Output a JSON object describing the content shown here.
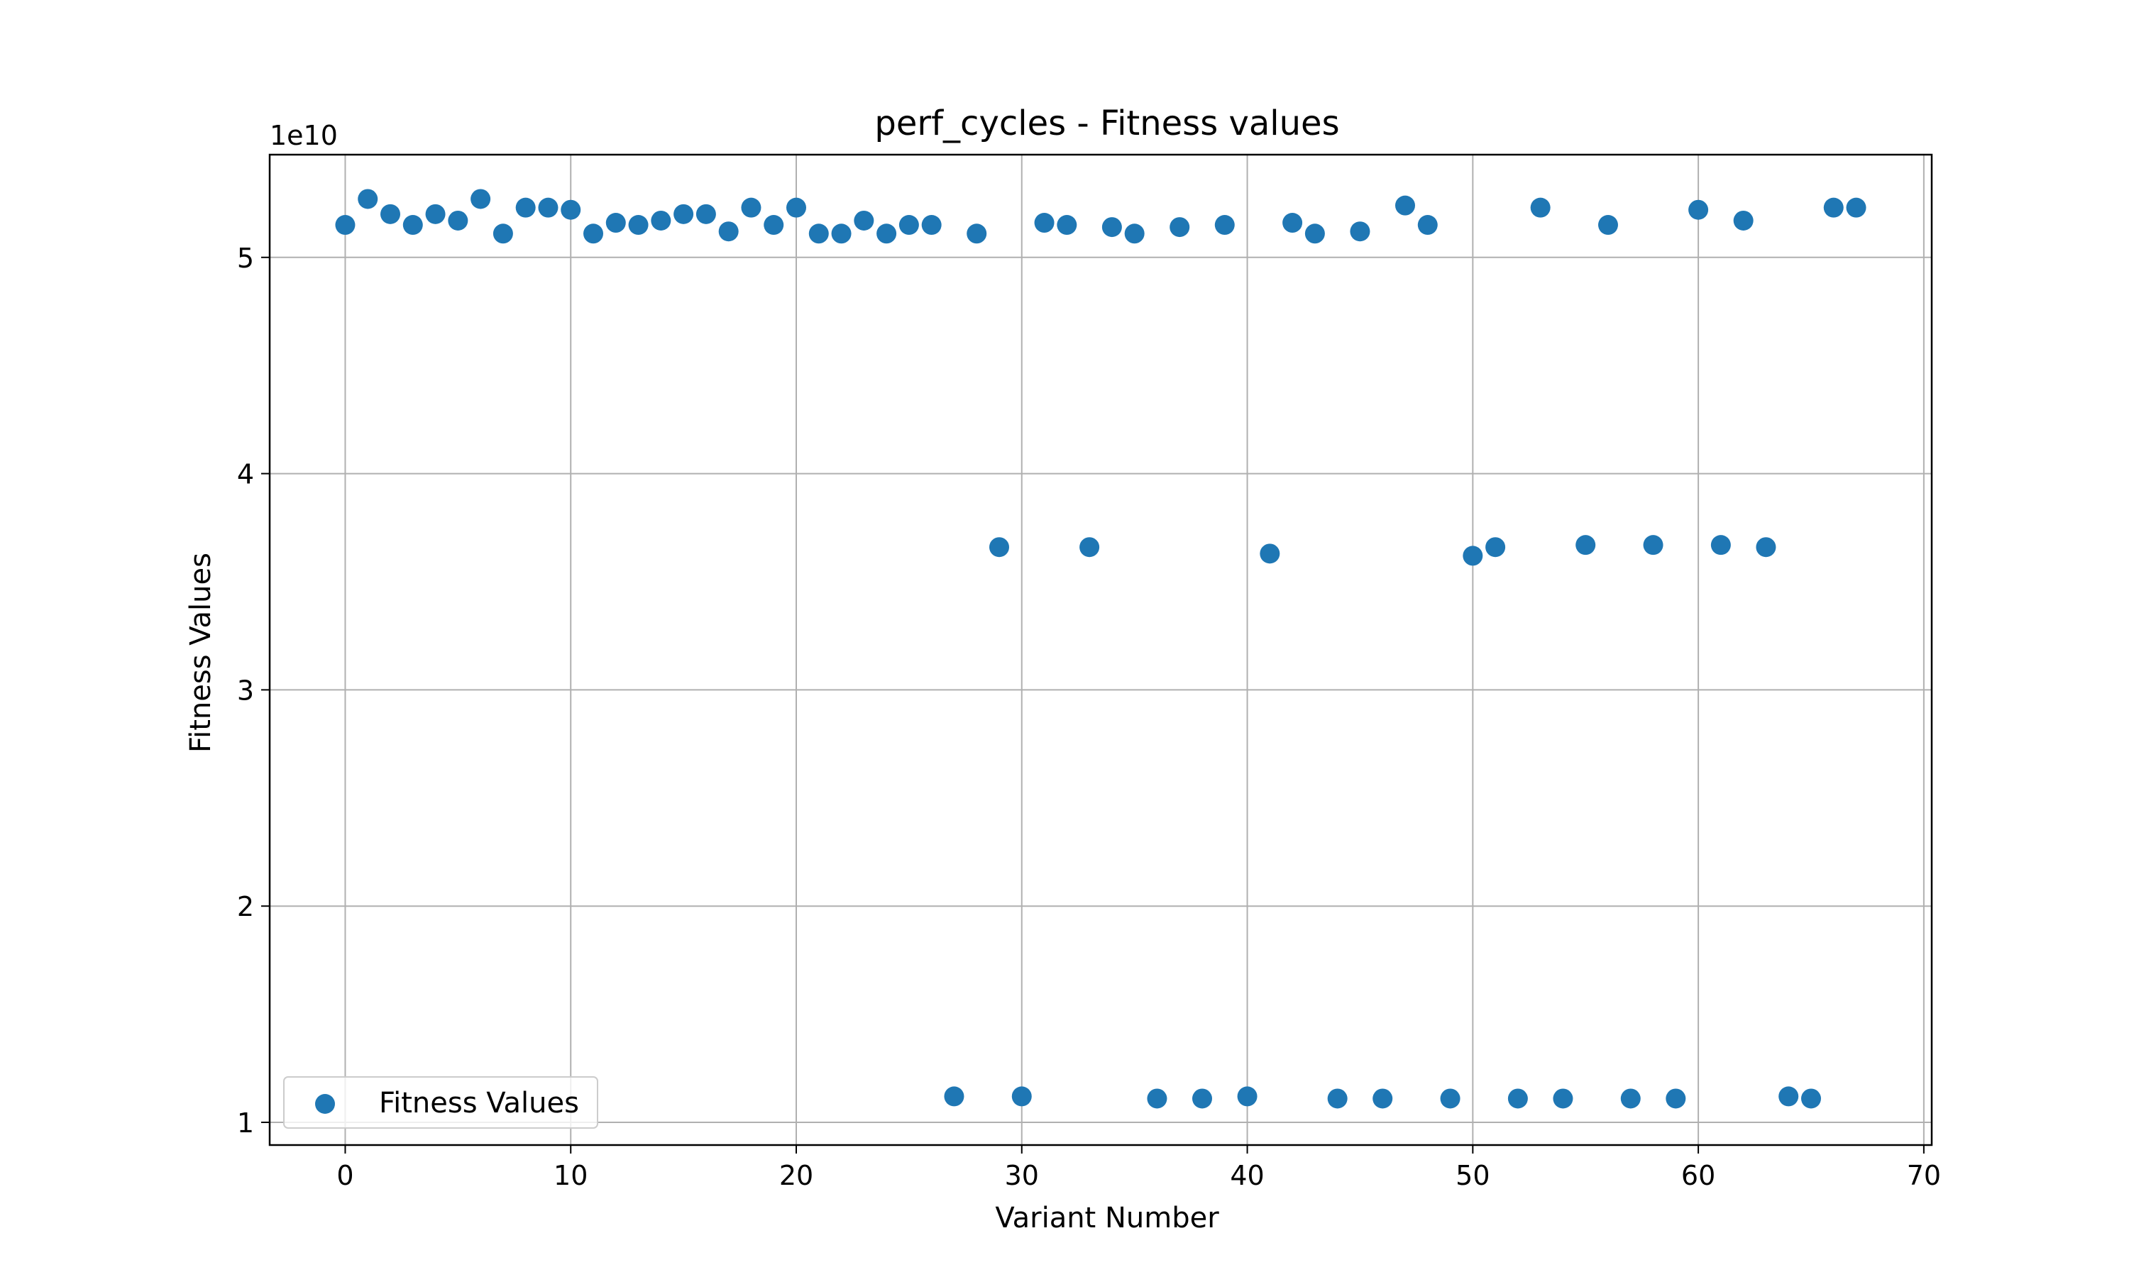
{
  "chart_data": {
    "type": "scatter",
    "title": "perf_cycles - Fitness values",
    "xlabel": "Variant Number",
    "ylabel": "Fitness Values",
    "y_multiplier_label": "1e10",
    "xlim": [
      -3.35,
      70.35
    ],
    "ylim": [
      0.895,
      5.475
    ],
    "xticks": [
      0,
      10,
      20,
      30,
      40,
      50,
      60,
      70
    ],
    "yticks": [
      1,
      2,
      3,
      4,
      5
    ],
    "grid": true,
    "legend": {
      "position": "lower-left",
      "entries": [
        "Fitness Values"
      ]
    },
    "series": [
      {
        "name": "Fitness Values",
        "color": "#1f77b4",
        "points": [
          [
            0,
            5.15
          ],
          [
            1,
            5.27
          ],
          [
            2,
            5.2
          ],
          [
            3,
            5.15
          ],
          [
            4,
            5.2
          ],
          [
            5,
            5.17
          ],
          [
            6,
            5.27
          ],
          [
            7,
            5.11
          ],
          [
            8,
            5.23
          ],
          [
            9,
            5.23
          ],
          [
            10,
            5.22
          ],
          [
            11,
            5.11
          ],
          [
            12,
            5.16
          ],
          [
            13,
            5.15
          ],
          [
            14,
            5.17
          ],
          [
            15,
            5.2
          ],
          [
            16,
            5.2
          ],
          [
            17,
            5.12
          ],
          [
            18,
            5.23
          ],
          [
            19,
            5.15
          ],
          [
            20,
            5.23
          ],
          [
            21,
            5.11
          ],
          [
            22,
            5.11
          ],
          [
            23,
            5.17
          ],
          [
            24,
            5.11
          ],
          [
            25,
            5.15
          ],
          [
            26,
            5.15
          ],
          [
            27,
            1.12
          ],
          [
            28,
            5.11
          ],
          [
            29,
            3.66
          ],
          [
            30,
            1.12
          ],
          [
            31,
            5.16
          ],
          [
            32,
            5.15
          ],
          [
            33,
            3.66
          ],
          [
            34,
            5.14
          ],
          [
            35,
            5.11
          ],
          [
            36,
            1.11
          ],
          [
            37,
            5.14
          ],
          [
            38,
            1.11
          ],
          [
            39,
            5.15
          ],
          [
            40,
            1.12
          ],
          [
            41,
            3.63
          ],
          [
            42,
            5.16
          ],
          [
            43,
            5.11
          ],
          [
            44,
            1.11
          ],
          [
            45,
            5.12
          ],
          [
            46,
            1.11
          ],
          [
            47,
            5.24
          ],
          [
            48,
            5.15
          ],
          [
            49,
            1.11
          ],
          [
            50,
            3.62
          ],
          [
            51,
            3.66
          ],
          [
            52,
            1.11
          ],
          [
            53,
            5.23
          ],
          [
            54,
            1.11
          ],
          [
            55,
            3.67
          ],
          [
            56,
            5.15
          ],
          [
            57,
            1.11
          ],
          [
            58,
            3.67
          ],
          [
            59,
            1.11
          ],
          [
            60,
            5.22
          ],
          [
            61,
            3.67
          ],
          [
            62,
            5.17
          ],
          [
            63,
            3.66
          ],
          [
            64,
            1.12
          ],
          [
            65,
            1.11
          ],
          [
            66,
            5.23
          ],
          [
            67,
            5.23
          ]
        ]
      }
    ]
  }
}
